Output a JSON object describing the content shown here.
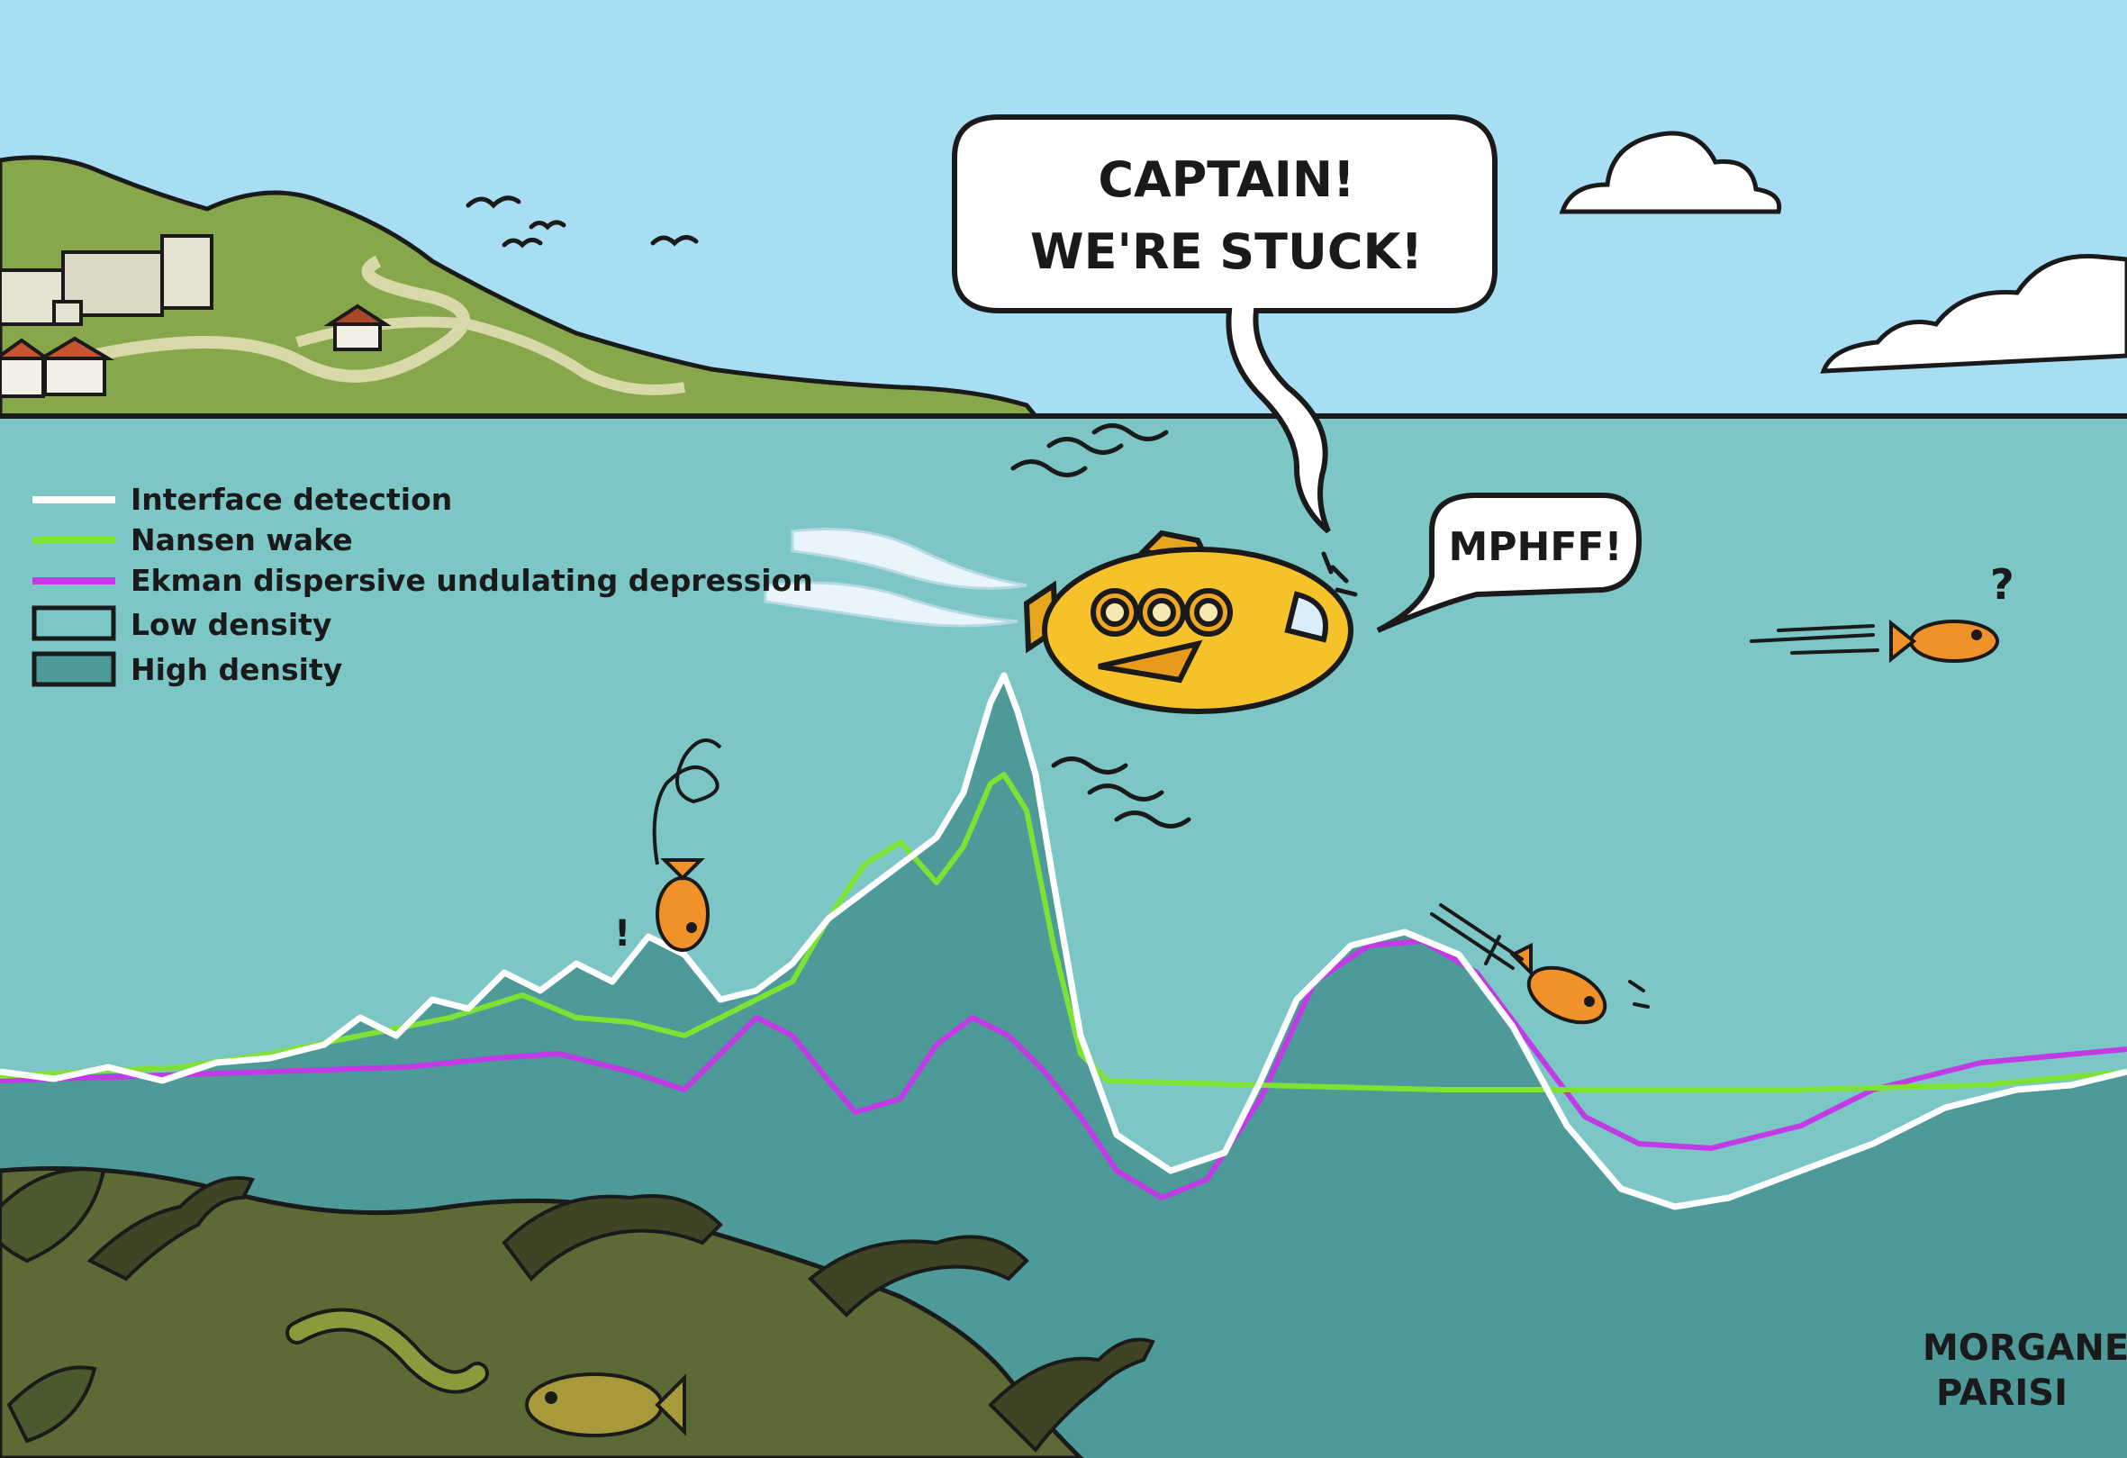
{
  "speech": {
    "captain_line1": "CAPTAIN!",
    "captain_line2": "WE'RE STUCK!",
    "fish": "MPHFF!",
    "question": "?"
  },
  "legend": {
    "items": [
      {
        "label": "Interface detection",
        "kind": "line",
        "color": "#ffffff"
      },
      {
        "label": "Nansen wake",
        "kind": "line",
        "color": "#7de234"
      },
      {
        "label": "Ekman dispersive undulating depression",
        "kind": "line",
        "color": "#c239e6"
      },
      {
        "label": "Low density",
        "kind": "box",
        "color": "#7cc7c5"
      },
      {
        "label": "High density",
        "kind": "box",
        "color": "#4d9a99"
      }
    ]
  },
  "signature": {
    "line1": "MORGANE",
    "line2": "PARISI"
  },
  "colors": {
    "sky": "#a8def4",
    "water_low": "#7cc7c5",
    "water_high": "#4d9a99",
    "hill": "#86a84a",
    "seabed": "#5c6a36",
    "submarine": "#f5c22a",
    "fish": "#f0912a"
  }
}
